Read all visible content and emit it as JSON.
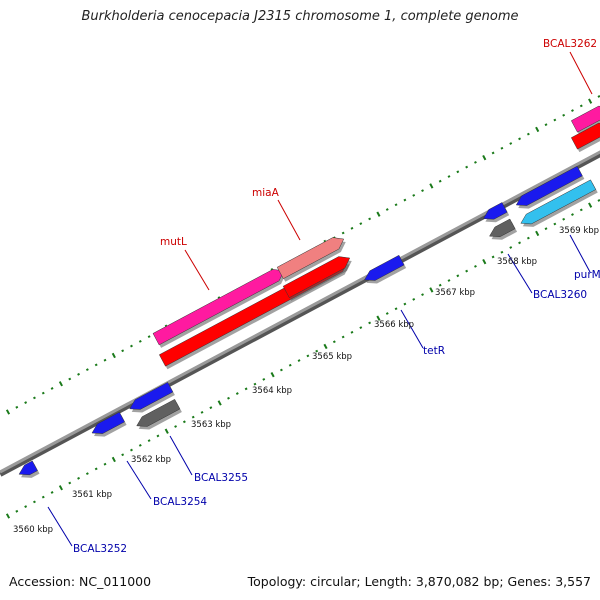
{
  "title": "Burkholderia cenocepacia J2315 chromosome 1, complete genome",
  "accession": "Accession: NC_011000",
  "stats": "Topology: circular; Length: 3,870,082 bp; Genes: 3,557",
  "colors": {
    "backbone": "#8a8a8a",
    "tick": "#1a7a1a",
    "forward_label": "#cc0000",
    "reverse_label": "#0000aa",
    "gene_pink": "#ff1aa0",
    "gene_salmon": "#f08080",
    "gene_red": "#ff0000",
    "gene_blue": "#1a1aee",
    "gene_cyan": "#33c0ee",
    "gene_grey": "#606060"
  },
  "chart_data": {
    "type": "genome-map",
    "position_labels": [
      "3560 kbp",
      "3561 kbp",
      "3562 kbp",
      "3563 kbp",
      "3564 kbp",
      "3565 kbp",
      "3566 kbp",
      "3567 kbp",
      "3568 kbp",
      "3569 kbp"
    ],
    "gene_labels": [
      {
        "text": "BCAL3262",
        "strand": "forward"
      },
      {
        "text": "miaA",
        "strand": "forward"
      },
      {
        "text": "mutL",
        "strand": "forward"
      },
      {
        "text": "BCAL3252",
        "strand": "reverse"
      },
      {
        "text": "BCAL3254",
        "strand": "reverse"
      },
      {
        "text": "BCAL3255",
        "strand": "reverse"
      },
      {
        "text": "tetR",
        "strand": "reverse"
      },
      {
        "text": "BCAL3260",
        "strand": "reverse"
      },
      {
        "text": "purM",
        "strand": "reverse"
      }
    ]
  }
}
